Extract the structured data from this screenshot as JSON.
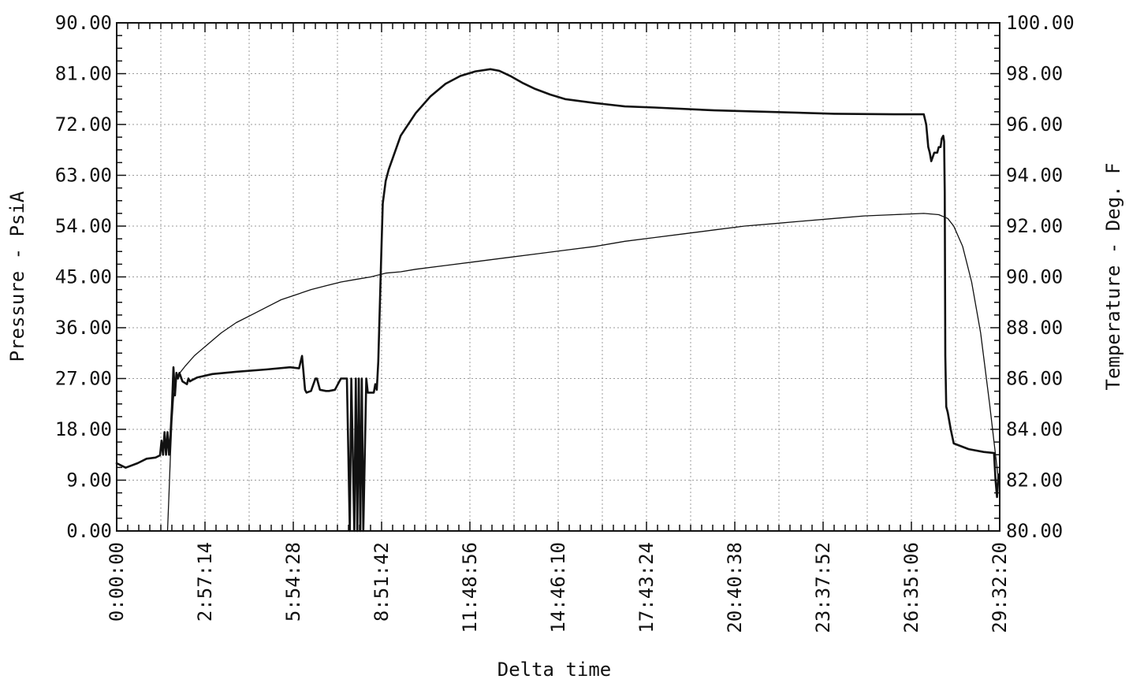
{
  "chart_data": {
    "type": "line",
    "title": "",
    "xlabel": "Delta time",
    "ylabel_left": "Pressure - PsiA",
    "ylabel_right": "Temperature - Deg. F",
    "x_unit": "hours",
    "xlim": [
      0,
      29.5389
    ],
    "x_ticks": [
      0,
      2.954,
      5.908,
      8.862,
      11.816,
      14.769,
      17.723,
      20.677,
      23.631,
      26.585,
      29.539
    ],
    "x_tick_labels": [
      "0:00:00",
      "2:57:14",
      "5:54:28",
      "8:51:42",
      "11:48:56",
      "14:46:10",
      "17:43:24",
      "20:40:38",
      "23:37:52",
      "26:35:06",
      "29:32:20"
    ],
    "ylim_left": [
      0,
      90
    ],
    "y_ticks_left": [
      "0.00",
      "9.00",
      "18.00",
      "27.00",
      "36.00",
      "45.00",
      "54.00",
      "63.00",
      "72.00",
      "81.00",
      "90.00"
    ],
    "ylim_right": [
      80,
      100
    ],
    "y_ticks_right": [
      "80.00",
      "82.00",
      "84.00",
      "86.00",
      "88.00",
      "90.00",
      "92.00",
      "94.00",
      "96.00",
      "98.00",
      "100.00"
    ],
    "grid": true,
    "legend": "none",
    "series": [
      {
        "axis": "left",
        "stroke": "bold",
        "x": [
          0,
          0.3,
          0.7,
          1.0,
          1.3,
          1.45,
          1.5,
          1.55,
          1.6,
          1.65,
          1.7,
          1.75,
          1.8,
          1.85,
          1.9,
          1.95,
          2.0,
          2.05,
          2.1,
          2.2,
          2.35,
          2.4,
          2.45,
          2.55,
          2.7,
          3.2,
          4.0,
          5.0,
          5.8,
          6.1,
          6.2,
          6.3,
          6.35,
          6.5,
          6.65,
          6.7,
          6.8,
          7.0,
          7.1,
          7.3,
          7.5,
          7.7,
          7.8,
          7.85,
          7.95,
          8.0,
          8.05,
          8.1,
          8.15,
          8.2,
          8.25,
          8.35,
          8.4,
          8.6,
          8.65,
          8.7,
          8.75,
          8.85,
          8.9,
          9.0,
          9.1,
          9.3,
          9.5,
          10.0,
          10.5,
          11.0,
          11.5,
          12.0,
          12.5,
          12.8,
          13.2,
          13.6,
          14.0,
          14.5,
          15.0,
          16.0,
          17.0,
          18.0,
          20.0,
          22.0,
          24.0,
          26.0,
          27.0,
          27.08,
          27.15,
          27.2,
          27.25,
          27.35,
          27.45,
          27.5,
          27.56,
          27.6,
          27.65,
          27.68,
          27.7,
          27.72,
          27.75,
          27.8,
          27.9,
          28.0,
          28.5,
          29.0,
          29.35,
          29.4,
          29.45,
          29.5
        ],
        "y": [
          12.0,
          11.2,
          12.0,
          12.8,
          13.0,
          13.4,
          16.0,
          13.5,
          17.5,
          13.5,
          17.5,
          13.5,
          17.0,
          22.0,
          29.0,
          24.0,
          28.0,
          27.0,
          28.0,
          26.5,
          26.0,
          27.0,
          26.5,
          26.8,
          27.2,
          27.8,
          28.2,
          28.6,
          29.0,
          28.8,
          31.0,
          25.0,
          24.5,
          24.8,
          27.0,
          27.0,
          25.0,
          24.8,
          24.8,
          25.0,
          27.0,
          27.0,
          0.0,
          27.0,
          0.0,
          27.0,
          0.0,
          27.0,
          0.0,
          27.0,
          0.0,
          27.0,
          24.5,
          24.5,
          26.0,
          25.0,
          30.0,
          49.0,
          58.0,
          62.0,
          64.0,
          67.0,
          70.0,
          74.0,
          77.0,
          79.2,
          80.6,
          81.4,
          81.8,
          81.5,
          80.5,
          79.3,
          78.3,
          77.3,
          76.5,
          75.8,
          75.2,
          75.0,
          74.5,
          74.2,
          73.9,
          73.8,
          73.8,
          72.0,
          68.0,
          67.0,
          65.5,
          67.0,
          67.0,
          68.0,
          68.0,
          69.5,
          70.0,
          69.0,
          60.0,
          31.0,
          22.0,
          21.0,
          18.0,
          15.5,
          14.5,
          14.0,
          13.8,
          9.0,
          6.0,
          10.0
        ]
      },
      {
        "axis": "right",
        "stroke": "thin",
        "x": [
          1.7,
          1.75,
          1.8,
          1.85,
          1.9,
          1.95,
          2.0,
          2.05,
          2.1,
          2.3,
          2.6,
          3.0,
          3.5,
          4.0,
          4.5,
          5.0,
          5.5,
          6.0,
          6.5,
          7.0,
          7.5,
          8.0,
          8.5,
          9.0,
          9.5,
          10.0,
          11.0,
          12.0,
          13.0,
          14.0,
          15.0,
          16.0,
          17.0,
          18.0,
          19.0,
          20.0,
          21.0,
          22.0,
          23.0,
          24.0,
          25.0,
          26.0,
          27.0,
          27.5,
          27.8,
          28.0,
          28.3,
          28.6,
          28.9,
          29.2,
          29.4,
          29.5
        ],
        "y": [
          80.0,
          81.5,
          83.0,
          84.3,
          85.2,
          85.8,
          86.0,
          86.1,
          86.2,
          86.5,
          86.9,
          87.3,
          87.8,
          88.2,
          88.5,
          88.8,
          89.1,
          89.3,
          89.5,
          89.65,
          89.8,
          89.9,
          90.0,
          90.15,
          90.2,
          90.3,
          90.45,
          90.6,
          90.75,
          90.9,
          91.05,
          91.2,
          91.4,
          91.55,
          91.7,
          91.85,
          92.0,
          92.1,
          92.2,
          92.3,
          92.4,
          92.45,
          92.5,
          92.45,
          92.3,
          92.0,
          91.2,
          89.8,
          87.8,
          85.0,
          83.0,
          82.0
        ]
      }
    ]
  }
}
